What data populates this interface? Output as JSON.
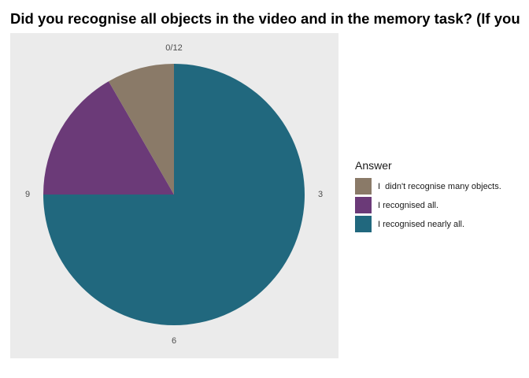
{
  "chart_data": {
    "type": "pie",
    "title": "Did you recognise all objects in the video and in the memory task? (If you",
    "legend_title": "Answer",
    "legend_position": "right",
    "slices": [
      {
        "label": "I recognised nearly all.",
        "value": 9,
        "color": "#21687e"
      },
      {
        "label": "I recognised all.",
        "value": 2,
        "color": "#6b3a78"
      },
      {
        "label": "I  didn't recognise many objects.",
        "value": 1,
        "color": "#8a7a68"
      }
    ],
    "legend_order": [
      2,
      1,
      0
    ],
    "angular_ticks": [
      "0/12",
      "3",
      "6",
      "9"
    ],
    "panel_background": "#ebebeb"
  }
}
